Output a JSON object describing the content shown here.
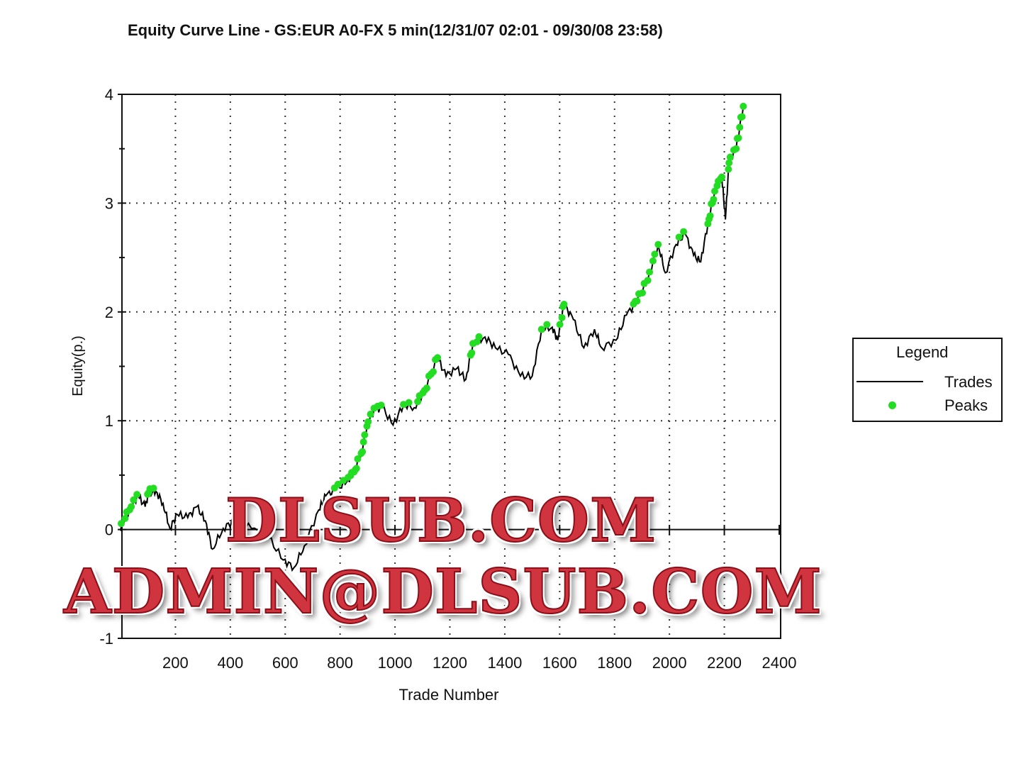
{
  "chart_data": {
    "type": "line",
    "title": "Equity Curve Line - GS:EUR A0-FX 5 min(12/31/07 02:01 - 09/30/08 23:58)",
    "xlabel": "Trade Number",
    "ylabel": "Equity(p.)",
    "xlim": [
      0,
      2400
    ],
    "ylim": [
      -1,
      4
    ],
    "x_ticks": [
      "200",
      "400",
      "600",
      "800",
      "1000",
      "1200",
      "1400",
      "1600",
      "1800",
      "2000",
      "2200",
      "2400"
    ],
    "y_ticks": [
      "-1",
      "0",
      "1",
      "2",
      "3",
      "4"
    ],
    "grid": true,
    "legend": {
      "title": "Legend",
      "position": "right",
      "entries": [
        "Trades",
        "Peaks"
      ]
    },
    "colors": {
      "trades": "#000000",
      "peaks": "#22dd22"
    },
    "series": [
      {
        "name": "Trades",
        "x": [
          0,
          5,
          39,
          64,
          90,
          103,
          129,
          155,
          180,
          206,
          245,
          278,
          309,
          335,
          374,
          412,
          477,
          541,
          593,
          632,
          670,
          722,
          748,
          786,
          825,
          851,
          877,
          902,
          928,
          954,
          993,
          1031,
          1070,
          1108,
          1155,
          1186,
          1225,
          1258,
          1284,
          1328,
          1366,
          1413,
          1457,
          1500,
          1534,
          1573,
          1593,
          1616,
          1650,
          1688,
          1727,
          1753,
          1805,
          1843,
          1882,
          1921,
          1959,
          1985,
          2024,
          2057,
          2088,
          2114,
          2140,
          2165,
          2191,
          2204,
          2217,
          2243,
          2269
        ],
        "y": [
          0,
          0.05,
          0.21,
          0.31,
          0.21,
          0.34,
          0.35,
          0.24,
          0.01,
          0.14,
          0.11,
          0.21,
          0.08,
          -0.18,
          0.01,
          0.08,
          0.01,
          -0.08,
          -0.28,
          -0.35,
          -0.15,
          0.18,
          0.31,
          0.37,
          0.44,
          0.53,
          0.7,
          0.99,
          1.1,
          1.12,
          0.96,
          1.15,
          1.12,
          1.28,
          1.58,
          1.41,
          1.48,
          1.38,
          1.71,
          1.77,
          1.67,
          1.61,
          1.41,
          1.41,
          1.84,
          1.86,
          1.74,
          2.07,
          1.93,
          1.67,
          1.84,
          1.67,
          1.74,
          1.97,
          2.1,
          2.29,
          2.62,
          2.36,
          2.62,
          2.72,
          2.52,
          2.46,
          2.81,
          3.11,
          3.24,
          2.85,
          3.37,
          3.5,
          3.89
        ]
      }
    ]
  },
  "watermark": {
    "line1": "DLSUB.COM",
    "line2": "ADMIN@DLSUB.COM"
  }
}
